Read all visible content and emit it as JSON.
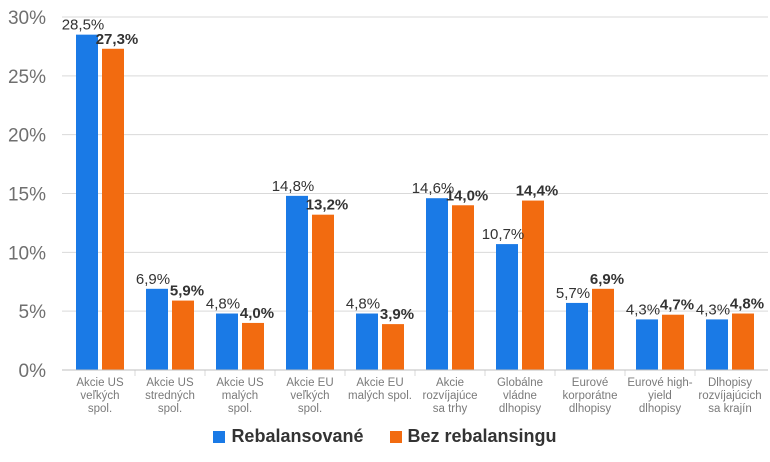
{
  "chart_data": {
    "type": "bar",
    "categories": [
      [
        "Akcie US",
        "veľkých",
        "spol."
      ],
      [
        "Akcie US",
        "stredných",
        "spol."
      ],
      [
        "Akcie US",
        "malých",
        "spol."
      ],
      [
        "Akcie EU",
        "veľkých",
        "spol."
      ],
      [
        "Akcie EU",
        "malých spol."
      ],
      [
        "Akcie",
        "rozvíjajúce",
        "sa trhy"
      ],
      [
        "Globálne",
        "vládne",
        "dlhopisy"
      ],
      [
        "Eurové",
        "korporátne",
        "dlhopisy"
      ],
      [
        "Eurové high-",
        "yield",
        "dlhopisy"
      ],
      [
        "Dlhopisy",
        "rozvíjajúcich",
        "sa krajín"
      ]
    ],
    "series": [
      {
        "name": "Rebalansované",
        "color": "#1a7ae6",
        "values": [
          28.5,
          6.9,
          4.8,
          14.8,
          4.8,
          14.6,
          10.7,
          5.7,
          4.3,
          4.3
        ],
        "labels": [
          "28,5%",
          "6,9%",
          "4,8%",
          "14,8%",
          "4,8%",
          "14,6%",
          "10,7%",
          "5,7%",
          "4,3%",
          "4,3%"
        ]
      },
      {
        "name": "Bez rebalansingu",
        "color": "#f26b10",
        "values": [
          27.3,
          5.9,
          4.0,
          13.2,
          3.9,
          14.0,
          14.4,
          6.9,
          4.7,
          4.8
        ],
        "labels": [
          "27,3%",
          "5,9%",
          "4,0%",
          "13,2%",
          "3,9%",
          "14,0%",
          "14,4%",
          "6,9%",
          "4,7%",
          "4,8%"
        ]
      }
    ],
    "yticks": [
      "0%",
      "5%",
      "10%",
      "15%",
      "20%",
      "25%",
      "30%"
    ],
    "ylim": [
      0,
      30
    ],
    "grid": true,
    "legend_position": "bottom"
  }
}
